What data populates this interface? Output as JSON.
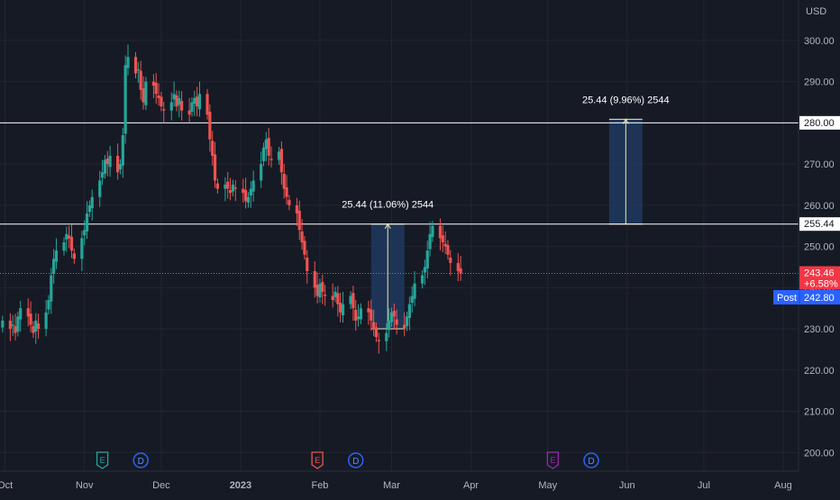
{
  "colors": {
    "background": "#161a25",
    "grid": "#232632",
    "axis_text": "#b2b5be",
    "up": "#26a69a",
    "down": "#ef5350",
    "level_line": "#ffffff",
    "range_fill": "#1e3a5f",
    "range_line": "#f7e6a6",
    "post_badge": "#2962ff",
    "last_price_badge": "#f23645"
  },
  "price_axis": {
    "currency": "USD",
    "ticks": [
      "300.00",
      "290.00",
      "280.00",
      "270.00",
      "260.00",
      "250.00",
      "240.00",
      "230.00",
      "220.00",
      "210.00",
      "200.00"
    ]
  },
  "time_axis": {
    "labels": [
      "Oct",
      "Nov",
      "Dec",
      "2023",
      "Feb",
      "Mar",
      "Apr",
      "May",
      "Jun",
      "Jul",
      "Aug"
    ]
  },
  "badges": {
    "level_280": "280.00",
    "level_255": "255.44",
    "last_price": "243.46",
    "last_change": "+6.58%",
    "post_label": "Post",
    "post_price": "242.80"
  },
  "measurements": [
    {
      "label": "25.44 (11.06%) 2544",
      "from": 230.0,
      "to": 255.44
    },
    {
      "label": "25.44 (9.96%) 2544",
      "from": 255.44,
      "to": 280.88
    }
  ],
  "events": [
    {
      "glyph": "E",
      "kind": "earnings-past",
      "date": "2022-11-08"
    },
    {
      "glyph": "D",
      "kind": "dividend",
      "date": "2022-11-23"
    },
    {
      "glyph": "E",
      "kind": "earnings-past",
      "date": "2023-01-31"
    },
    {
      "glyph": "D",
      "kind": "dividend",
      "date": "2023-02-15"
    },
    {
      "glyph": "E",
      "kind": "earnings-upcoming",
      "date": "2023-05-03"
    },
    {
      "glyph": "D",
      "kind": "dividend",
      "date": "2023-05-18"
    }
  ],
  "chart_data": {
    "type": "candlestick",
    "ylim": [
      197,
      305
    ],
    "x_range": [
      "2022-09-29",
      "2023-08-07"
    ],
    "horizontal_levels": [
      280.0,
      255.44
    ],
    "last_price": 243.46,
    "post_price": 242.8,
    "close_series": {
      "start_date": "2022-09-30",
      "frequency": "business-day",
      "values": [
        232,
        230,
        231,
        229,
        233,
        235,
        233,
        231,
        229,
        232,
        230,
        234,
        237,
        243,
        247,
        249,
        251,
        253,
        252,
        249,
        247,
        252,
        254,
        258,
        260,
        262,
        266,
        268,
        271,
        270,
        272,
        268,
        270,
        277,
        294,
        296,
        292,
        293,
        288,
        285,
        290,
        289,
        287,
        286,
        284,
        283,
        285,
        287,
        284,
        286,
        283,
        282,
        285,
        286,
        284,
        287,
        282,
        276,
        272,
        266,
        264,
        265,
        264,
        263,
        265,
        264,
        263,
        261,
        262,
        264,
        266,
        270,
        274,
        276,
        272,
        271,
        273,
        268,
        264,
        262,
        260,
        258,
        254,
        251,
        248,
        244,
        240,
        238,
        241,
        239,
        238,
        237,
        239,
        236,
        234,
        236,
        238,
        235,
        232,
        233,
        235,
        234,
        232,
        230,
        228,
        227,
        229,
        232,
        234,
        233,
        231,
        230,
        233,
        236,
        238,
        241,
        243,
        245,
        249,
        253,
        255,
        252,
        251,
        250,
        248,
        246,
        244,
        243.46
      ]
    }
  }
}
